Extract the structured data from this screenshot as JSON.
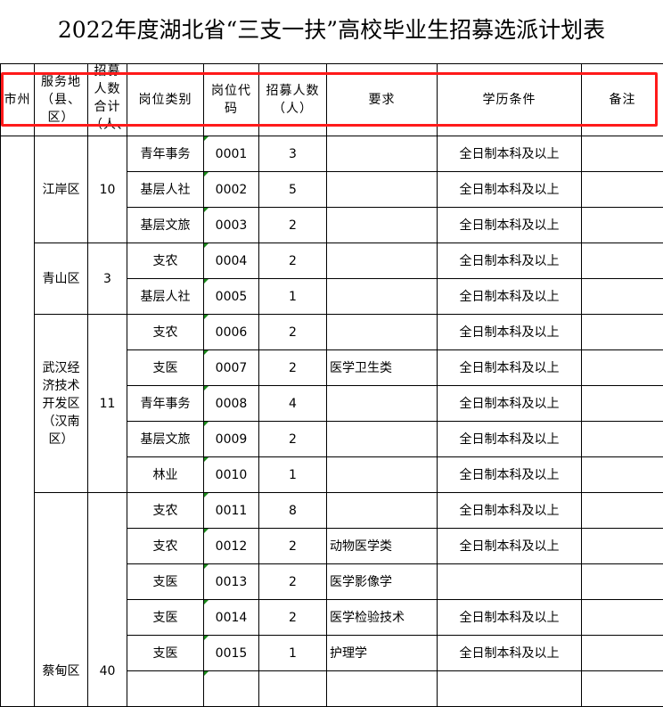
{
  "title": "2022年度湖北省“三支一扶”高校毕业生招募选派计划表",
  "headers": [
    "市州",
    "服务地（县、区）",
    "招募人数合计（人、",
    "岗位类别",
    "岗位代码",
    "招募人数（人）",
    "要求",
    "学历条件",
    "备注"
  ],
  "annotation_color": "#ff1a1a",
  "groups": [
    {
      "district": "江岸区",
      "total": "10",
      "rows": [
        {
          "category": "青年事务",
          "code": "0001",
          "count": "3",
          "req": "",
          "edu": "全日制本科及以上"
        },
        {
          "category": "基层人社",
          "code": "0002",
          "count": "5",
          "req": "",
          "edu": "全日制本科及以上"
        },
        {
          "category": "基层文旅",
          "code": "0003",
          "count": "2",
          "req": "",
          "edu": "全日制本科及以上"
        }
      ]
    },
    {
      "district": "青山区",
      "total": "3",
      "rows": [
        {
          "category": "支农",
          "code": "0004",
          "count": "2",
          "req": "",
          "edu": "全日制本科及以上"
        },
        {
          "category": "基层人社",
          "code": "0005",
          "count": "1",
          "req": "",
          "edu": "全日制本科及以上"
        }
      ]
    },
    {
      "district": "武汉经济技术开发区（汉南区）",
      "total": "11",
      "rows": [
        {
          "category": "支农",
          "code": "0006",
          "count": "2",
          "req": "",
          "edu": "全日制本科及以上"
        },
        {
          "category": "支医",
          "code": "0007",
          "count": "2",
          "req": "医学卫生类",
          "edu": "全日制本科及以上"
        },
        {
          "category": "青年事务",
          "code": "0008",
          "count": "4",
          "req": "",
          "edu": "全日制本科及以上"
        },
        {
          "category": "基层文旅",
          "code": "0009",
          "count": "2",
          "req": "",
          "edu": "全日制本科及以上"
        },
        {
          "category": "林业",
          "code": "0010",
          "count": "1",
          "req": "",
          "edu": "全日制本科及以上"
        }
      ]
    },
    {
      "district": "蔡甸区",
      "total": "40",
      "rows": [
        {
          "category": "支农",
          "code": "0011",
          "count": "8",
          "req": "",
          "edu": "全日制本科及以上"
        },
        {
          "category": "支农",
          "code": "0012",
          "count": "2",
          "req": "动物医学类",
          "edu": "全日制本科及以上"
        },
        {
          "category": "支医",
          "code": "0013",
          "count": "2",
          "req": "医学影像学",
          "edu": ""
        },
        {
          "category": "支医",
          "code": "0014",
          "count": "2",
          "req": "医学检验技术",
          "edu": "全日制本科及以上"
        },
        {
          "category": "支医",
          "code": "0015",
          "count": "1",
          "req": "护理学",
          "edu": "全日制本科及以上"
        }
      ]
    }
  ]
}
